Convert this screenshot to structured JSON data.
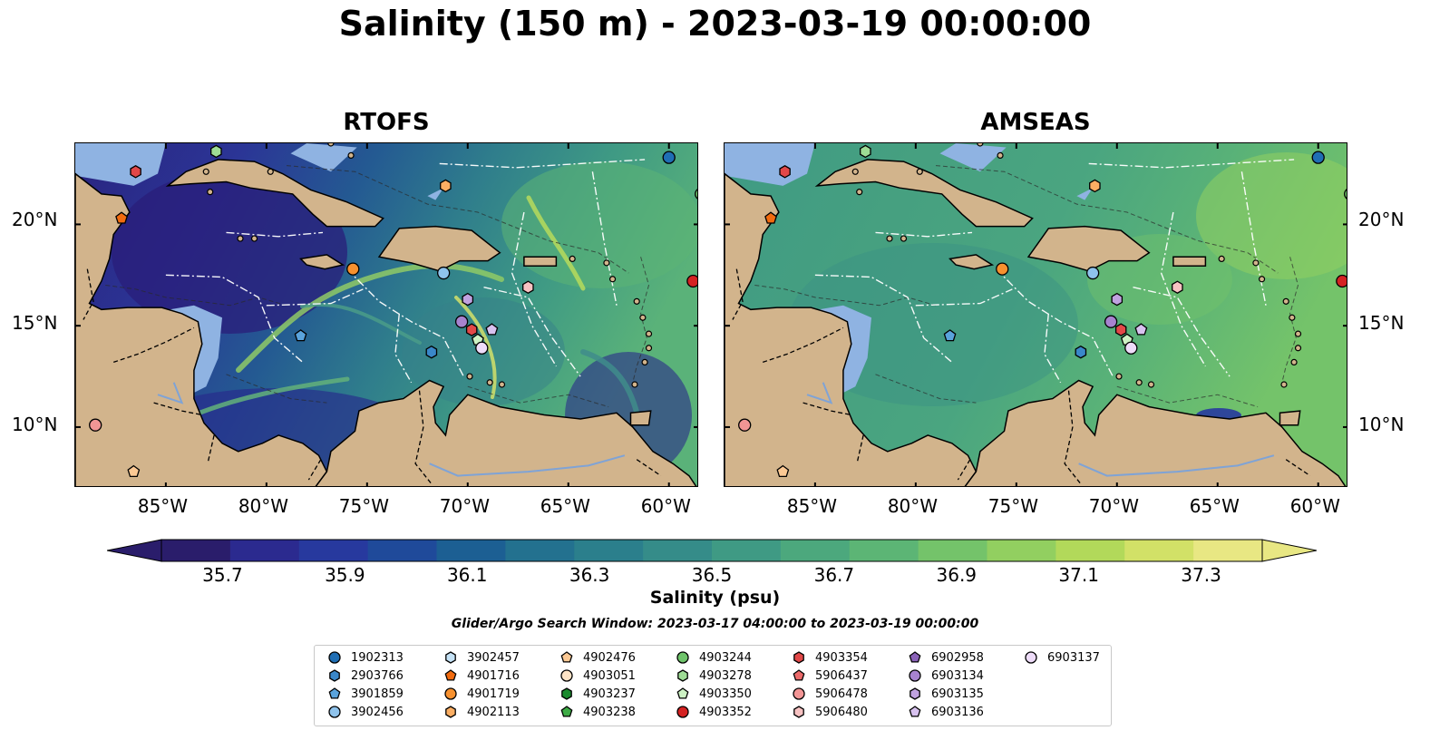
{
  "title": "Salinity (150 m) - 2023-03-19 00:00:00",
  "panels": [
    {
      "title": "RTOFS",
      "scheme": "rtofs"
    },
    {
      "title": "AMSEAS",
      "scheme": "amseas"
    }
  ],
  "axes": {
    "lon_ticks": [
      "85°W",
      "80°W",
      "75°W",
      "70°W",
      "65°W",
      "60°W"
    ],
    "lat_ticks": [
      "20°N",
      "15°N",
      "10°N"
    ],
    "lon_range": [
      -89.5,
      -58.5
    ],
    "lat_range": [
      7.0,
      24.0
    ]
  },
  "colorbar": {
    "label": "Salinity (psu)",
    "ticks": [
      "35.7",
      "35.9",
      "36.1",
      "36.3",
      "36.5",
      "36.7",
      "36.9",
      "37.1",
      "37.3"
    ],
    "min": 35.6,
    "max": 37.4,
    "extend": "both",
    "colors": [
      "#2a1d6b",
      "#2b2a8f",
      "#27399e",
      "#1f4a9a",
      "#1c5f93",
      "#23718f",
      "#2b7f8c",
      "#358c89",
      "#3f9a84",
      "#4ca87d",
      "#5cb575",
      "#74c36a",
      "#92cf60",
      "#b2d95a",
      "#d2e167",
      "#e8e783"
    ]
  },
  "search_window": "Glider/Argo Search Window: 2023-03-17 04:00:00 to 2023-03-19 00:00:00",
  "legend": [
    {
      "id": "1902313",
      "marker": "circle",
      "color": "#1f6eb4"
    },
    {
      "id": "2903766",
      "marker": "hexagon",
      "color": "#3a87c9"
    },
    {
      "id": "3901859",
      "marker": "pentagon",
      "color": "#5aa3dc"
    },
    {
      "id": "3902456",
      "marker": "circle",
      "color": "#8fc3ec"
    },
    {
      "id": "3902457",
      "marker": "hexagon",
      "color": "#c5e2f6"
    },
    {
      "id": "4901716",
      "marker": "pentagon",
      "color": "#f26b0f"
    },
    {
      "id": "4901719",
      "marker": "circle",
      "color": "#f7912f"
    },
    {
      "id": "4902113",
      "marker": "hexagon",
      "color": "#fbae63"
    },
    {
      "id": "4902476",
      "marker": "pentagon",
      "color": "#fcc994"
    },
    {
      "id": "4903051",
      "marker": "circle",
      "color": "#fde3c6"
    },
    {
      "id": "4903237",
      "marker": "hexagon",
      "color": "#1b8a2e"
    },
    {
      "id": "4903238",
      "marker": "pentagon",
      "color": "#3eab46"
    },
    {
      "id": "4903244",
      "marker": "circle",
      "color": "#6fc46b"
    },
    {
      "id": "4903278",
      "marker": "hexagon",
      "color": "#9edc95"
    },
    {
      "id": "4903350",
      "marker": "pentagon",
      "color": "#cdf2c4"
    },
    {
      "id": "4903352",
      "marker": "circle",
      "color": "#d42222"
    },
    {
      "id": "4903354",
      "marker": "hexagon",
      "color": "#e24848"
    },
    {
      "id": "5906437",
      "marker": "pentagon",
      "color": "#ec6a6a"
    },
    {
      "id": "5906478",
      "marker": "circle",
      "color": "#f29595"
    },
    {
      "id": "5906480",
      "marker": "hexagon",
      "color": "#f7c2c2"
    },
    {
      "id": "6902958",
      "marker": "pentagon",
      "color": "#8a62b8"
    },
    {
      "id": "6903134",
      "marker": "circle",
      "color": "#a783cf"
    },
    {
      "id": "6903135",
      "marker": "hexagon",
      "color": "#c0a2e0"
    },
    {
      "id": "6903136",
      "marker": "pentagon",
      "color": "#d8c2ef"
    },
    {
      "id": "6903137",
      "marker": "circle",
      "color": "#eedcf9"
    }
  ],
  "floats": [
    {
      "id": "1902313",
      "lon": -60.0,
      "lat": 23.3
    },
    {
      "id": "4903244",
      "lon": -58.4,
      "lat": 21.5
    },
    {
      "id": "4903278",
      "lon": -82.5,
      "lat": 23.6
    },
    {
      "id": "4903354",
      "lon": -86.5,
      "lat": 22.6
    },
    {
      "id": "4901716",
      "lon": -87.2,
      "lat": 20.3
    },
    {
      "id": "4902113",
      "lon": -71.1,
      "lat": 21.9
    },
    {
      "id": "4901719",
      "lon": -75.7,
      "lat": 17.8
    },
    {
      "id": "3902456",
      "lon": -71.2,
      "lat": 17.6
    },
    {
      "id": "5906480",
      "lon": -67.0,
      "lat": 16.9
    },
    {
      "id": "4903352",
      "lon": -58.8,
      "lat": 17.2
    },
    {
      "id": "6903135",
      "lon": -70.0,
      "lat": 16.3
    },
    {
      "id": "6903134",
      "lon": -70.3,
      "lat": 15.2
    },
    {
      "id": "4903354",
      "lon": -69.8,
      "lat": 14.8
    },
    {
      "id": "6903136",
      "lon": -68.8,
      "lat": 14.8
    },
    {
      "id": "4903350",
      "lon": -69.5,
      "lat": 14.3
    },
    {
      "id": "6903137",
      "lon": -69.3,
      "lat": 13.9
    },
    {
      "id": "3901859",
      "lon": -78.3,
      "lat": 14.5
    },
    {
      "id": "2903766",
      "lon": -71.8,
      "lat": 13.7
    },
    {
      "id": "5906478",
      "lon": -88.5,
      "lat": 10.1
    },
    {
      "id": "4902476",
      "lon": -86.6,
      "lat": 7.8
    }
  ]
}
